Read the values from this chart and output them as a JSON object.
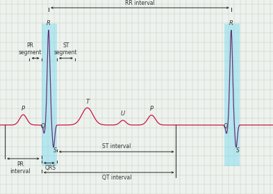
{
  "background_color": "#eef2ee",
  "grid_color": "#c0d0c0",
  "ecg_color": "#cc1144",
  "qrs_color": "#663377",
  "highlight_color": "#88ddee",
  "highlight_alpha": 0.55,
  "annotation_color": "#333333",
  "figsize": [
    3.93,
    2.79
  ],
  "dpi": 100,
  "xlim": [
    0,
    10
  ],
  "ylim": [
    -1.6,
    2.9
  ],
  "grid_step": 0.22,
  "fs_label": 5.5,
  "fs_italic": 6.0
}
